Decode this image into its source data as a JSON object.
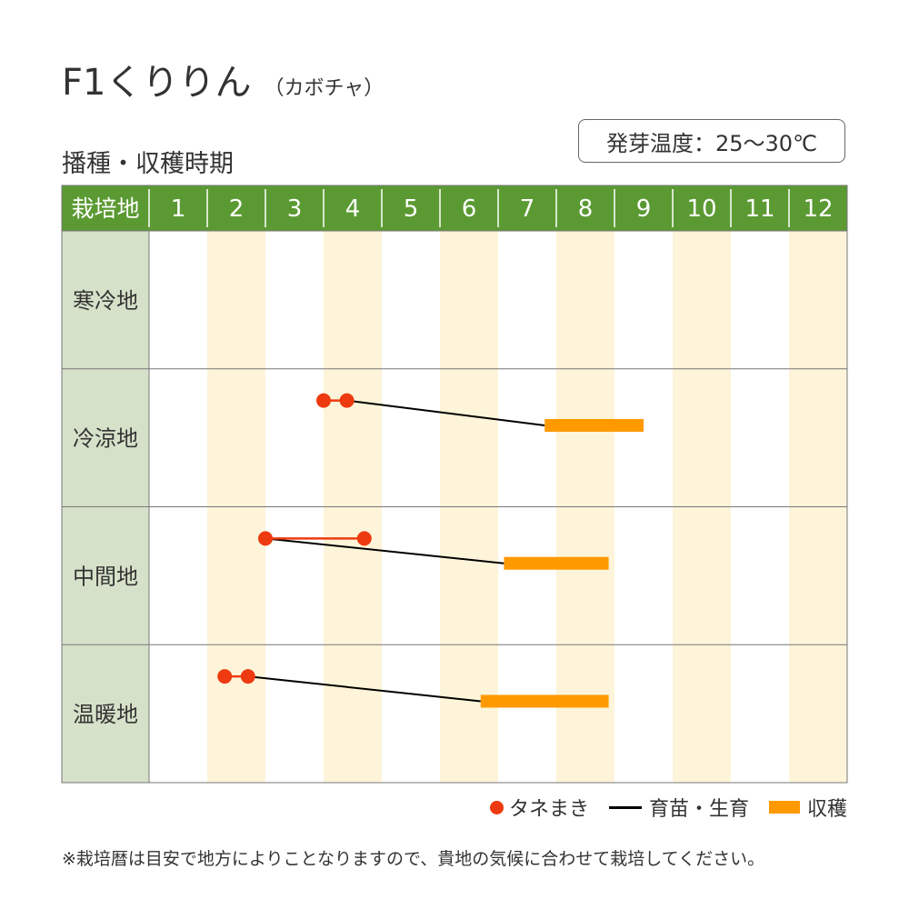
{
  "header": {
    "title": "F1くりりん",
    "subtitle": "（カボチャ）",
    "section_title": "播種・収穫時期",
    "temperature_label": "発芽温度：25〜30℃"
  },
  "colors": {
    "header_green": "#5b9a33",
    "region_bg": "#d6e1c9",
    "stripe": "#fdf4d9",
    "sowing": "#ee3a10",
    "growing_line": "#000000",
    "harvest": "#ff9900",
    "grid": "#777777"
  },
  "chart_data": {
    "type": "table",
    "corner_label": "栽培地",
    "months": [
      "1",
      "2",
      "3",
      "4",
      "5",
      "6",
      "7",
      "8",
      "9",
      "10",
      "11",
      "12"
    ],
    "regions": [
      {
        "name": "寒冷地",
        "sowing": null,
        "growing": null,
        "harvest": null
      },
      {
        "name": "冷涼地",
        "sowing": [
          4.0,
          4.4
        ],
        "growing": [
          4.4,
          7.8
        ],
        "harvest": [
          7.8,
          9.5
        ]
      },
      {
        "name": "中間地",
        "sowing": [
          3.0,
          4.7
        ],
        "growing": [
          3.0,
          7.1
        ],
        "harvest": [
          7.1,
          8.9
        ]
      },
      {
        "name": "温暖地",
        "sowing": [
          2.3,
          2.7
        ],
        "growing": [
          2.7,
          6.7
        ],
        "harvest": [
          6.7,
          8.9
        ]
      }
    ]
  },
  "legend": {
    "sowing": "タネまき",
    "growing": "育苗・生育",
    "harvest": "収穫"
  },
  "footnote": "※栽培暦は目安で地方によりことなりますので、貴地の気候に合わせて栽培してください。"
}
